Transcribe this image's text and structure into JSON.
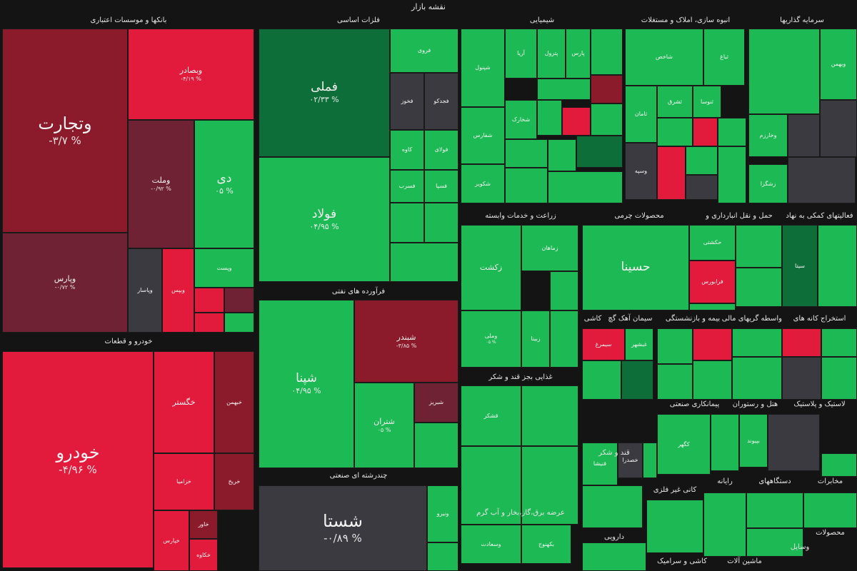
{
  "chart_data": {
    "type": "treemap",
    "title": "نقشه بازار",
    "colors": {
      "strong_green": "#109a45",
      "green": "#1db954",
      "light_green": "#2ecc64",
      "dark_green": "#0e6e39",
      "red": "#e21b3c",
      "dark_red": "#8b1a2b",
      "maroon": "#6e2233",
      "neutral": "#3b3a40",
      "background": "#141414"
    },
    "sectors": [
      {
        "name": "بانکها و موسسات اعتباری"
      },
      {
        "name": "فلزات اساسی"
      },
      {
        "name": "شیمیایی"
      },
      {
        "name": "انبوه سازی، املاک و مستغلات"
      },
      {
        "name": "سرمایه گذاریها"
      },
      {
        "name": "فرآورده های نفتی"
      },
      {
        "name": "خودرو و قطعات"
      },
      {
        "name": "زراعت و خدمات وابسته"
      },
      {
        "name": "محصولات چرمی"
      },
      {
        "name": "حمل و نقل انبارداری و"
      },
      {
        "name": "فعالیتهای کمکی به نهاد"
      },
      {
        "name": "کاشی"
      },
      {
        "name": "سیمان آهک گچ"
      },
      {
        "name": "بیمه و بازنشستگی"
      },
      {
        "name": "واسطه گریهای مالی"
      },
      {
        "name": "استخراج کانه های"
      },
      {
        "name": "غذایی بجز قند و شکر"
      },
      {
        "name": "پیمانکاری صنعتی"
      },
      {
        "name": "هتل و رستوران"
      },
      {
        "name": "لاستیک و پلاستیک"
      },
      {
        "name": "چندرشته ای صنعتی"
      },
      {
        "name": "عرضه برق،گاز،بخار و آب گرم"
      },
      {
        "name": "قند و شکر"
      },
      {
        "name": "کانی غیر فلزی"
      },
      {
        "name": "رایانه"
      },
      {
        "name": "دستگاههای"
      },
      {
        "name": "مخابرات"
      },
      {
        "name": "دارویی"
      },
      {
        "name": "کاشی و سرامیک"
      },
      {
        "name": "محصولات"
      },
      {
        "name": "ماشین آلات"
      },
      {
        "name": "وسایل"
      }
    ],
    "tiles": [
      {
        "symbol": "وتجارت",
        "change": "-۳/۷ %",
        "color": "dark_red"
      },
      {
        "symbol": "وبصادر",
        "change": "-۴/۱۹ %",
        "color": "red"
      },
      {
        "symbol": "وملت",
        "change": "-۰/۹۲ %",
        "color": "maroon"
      },
      {
        "symbol": "دی",
        "change": "۰۵ %",
        "color": "green"
      },
      {
        "symbol": "وپارس",
        "change": "-۰/۷۲ %",
        "color": "maroon"
      },
      {
        "symbol": "وپاسار",
        "change": "",
        "color": "neutral"
      },
      {
        "symbol": "وبپس",
        "change": "",
        "color": "red"
      },
      {
        "symbol": "وپست",
        "change": "",
        "color": "green"
      },
      {
        "symbol": "فملی",
        "change": "۰۲/۳۳ %",
        "color": "dark_green"
      },
      {
        "symbol": "فولاد",
        "change": "۰۴/۹۵ %",
        "color": "green"
      },
      {
        "symbol": "فروی",
        "change": "",
        "color": "green"
      },
      {
        "symbol": "فخوز",
        "change": "",
        "color": "neutral"
      },
      {
        "symbol": "فجدکو",
        "change": "",
        "color": "neutral"
      },
      {
        "symbol": "کاوه",
        "change": "",
        "color": "green"
      },
      {
        "symbol": "فولای",
        "change": "",
        "color": "green"
      },
      {
        "symbol": "فسرب",
        "change": "",
        "color": "green"
      },
      {
        "symbol": "فسپا",
        "change": "",
        "color": "green"
      },
      {
        "symbol": "شپنا",
        "change": "۰۴/۹۵ %",
        "color": "green"
      },
      {
        "symbol": "شبندر",
        "change": "-۳/۸۵ %",
        "color": "dark_red"
      },
      {
        "symbol": "شتران",
        "change": "۰۵ %",
        "color": "green"
      },
      {
        "symbol": "شبریز",
        "change": "",
        "color": "maroon"
      },
      {
        "symbol": "خودرو",
        "change": "-۴/۹۶ %",
        "color": "red"
      },
      {
        "symbol": "خگستر",
        "change": "",
        "color": "red"
      },
      {
        "symbol": "خبهمن",
        "change": "",
        "color": "dark_red"
      },
      {
        "symbol": "خزامیا",
        "change": "",
        "color": "red"
      },
      {
        "symbol": "خریخ",
        "change": "",
        "color": "dark_red"
      },
      {
        "symbol": "خپارس",
        "change": "",
        "color": "red"
      },
      {
        "symbol": "خاور",
        "change": "",
        "color": "dark_red"
      },
      {
        "symbol": "خکاوه",
        "change": "",
        "color": "red"
      },
      {
        "symbol": "شستا",
        "change": "-۰/۸۹ %",
        "color": "neutral"
      },
      {
        "symbol": "ونیرو",
        "change": "",
        "color": "green"
      },
      {
        "symbol": "شپنول",
        "change": "",
        "color": "green"
      },
      {
        "symbol": "آریا",
        "change": "",
        "color": "green"
      },
      {
        "symbol": "پترول",
        "change": "",
        "color": "green"
      },
      {
        "symbol": "پارس",
        "change": "",
        "color": "green"
      },
      {
        "symbol": "شفارس",
        "change": "",
        "color": "green"
      },
      {
        "symbol": "شخارک",
        "change": "",
        "color": "green"
      },
      {
        "symbol": "شکویر",
        "change": "",
        "color": "green"
      },
      {
        "symbol": "شاخص",
        "change": "",
        "color": "green"
      },
      {
        "symbol": "ثباغ",
        "change": "",
        "color": "green"
      },
      {
        "symbol": "ثامان",
        "change": "",
        "color": "green"
      },
      {
        "symbol": "ثشرق",
        "change": "",
        "color": "green"
      },
      {
        "symbol": "ثنوسا",
        "change": "",
        "color": "green"
      },
      {
        "symbol": "وسپه",
        "change": "",
        "color": "neutral"
      },
      {
        "symbol": "وبهمن",
        "change": "",
        "color": "green"
      },
      {
        "symbol": "وخارزم",
        "change": "",
        "color": "green"
      },
      {
        "symbol": "زشگزا",
        "change": "",
        "color": "green"
      },
      {
        "symbol": "زکشت",
        "change": "",
        "color": "green"
      },
      {
        "symbol": "زماهان",
        "change": "",
        "color": "green"
      },
      {
        "symbol": "زبینا",
        "change": "",
        "color": "green"
      },
      {
        "symbol": "وملی",
        "change": "۰۵ %",
        "color": "green"
      },
      {
        "symbol": "حسینا",
        "change": "",
        "color": "green"
      },
      {
        "symbol": "حکشتی",
        "change": "",
        "color": "green"
      },
      {
        "symbol": "فرابورس",
        "change": "",
        "color": "red"
      },
      {
        "symbol": "سیتا",
        "change": "",
        "color": "dark_green"
      },
      {
        "symbol": "سیمرغ",
        "change": "",
        "color": "red"
      },
      {
        "symbol": "غبشهر",
        "change": "",
        "color": "green"
      },
      {
        "symbol": "قشکر",
        "change": "",
        "color": "green"
      },
      {
        "symbol": "قنیشا",
        "change": "",
        "color": "green"
      },
      {
        "symbol": "خصدرا",
        "change": "",
        "color": "neutral"
      },
      {
        "symbol": "کگهر",
        "change": "",
        "color": "green"
      },
      {
        "symbol": "بپیوند",
        "change": "",
        "color": "green"
      },
      {
        "symbol": "بکهنوج",
        "change": "",
        "color": "green"
      },
      {
        "symbol": "وسعادت",
        "change": "",
        "color": "green"
      }
    ]
  }
}
